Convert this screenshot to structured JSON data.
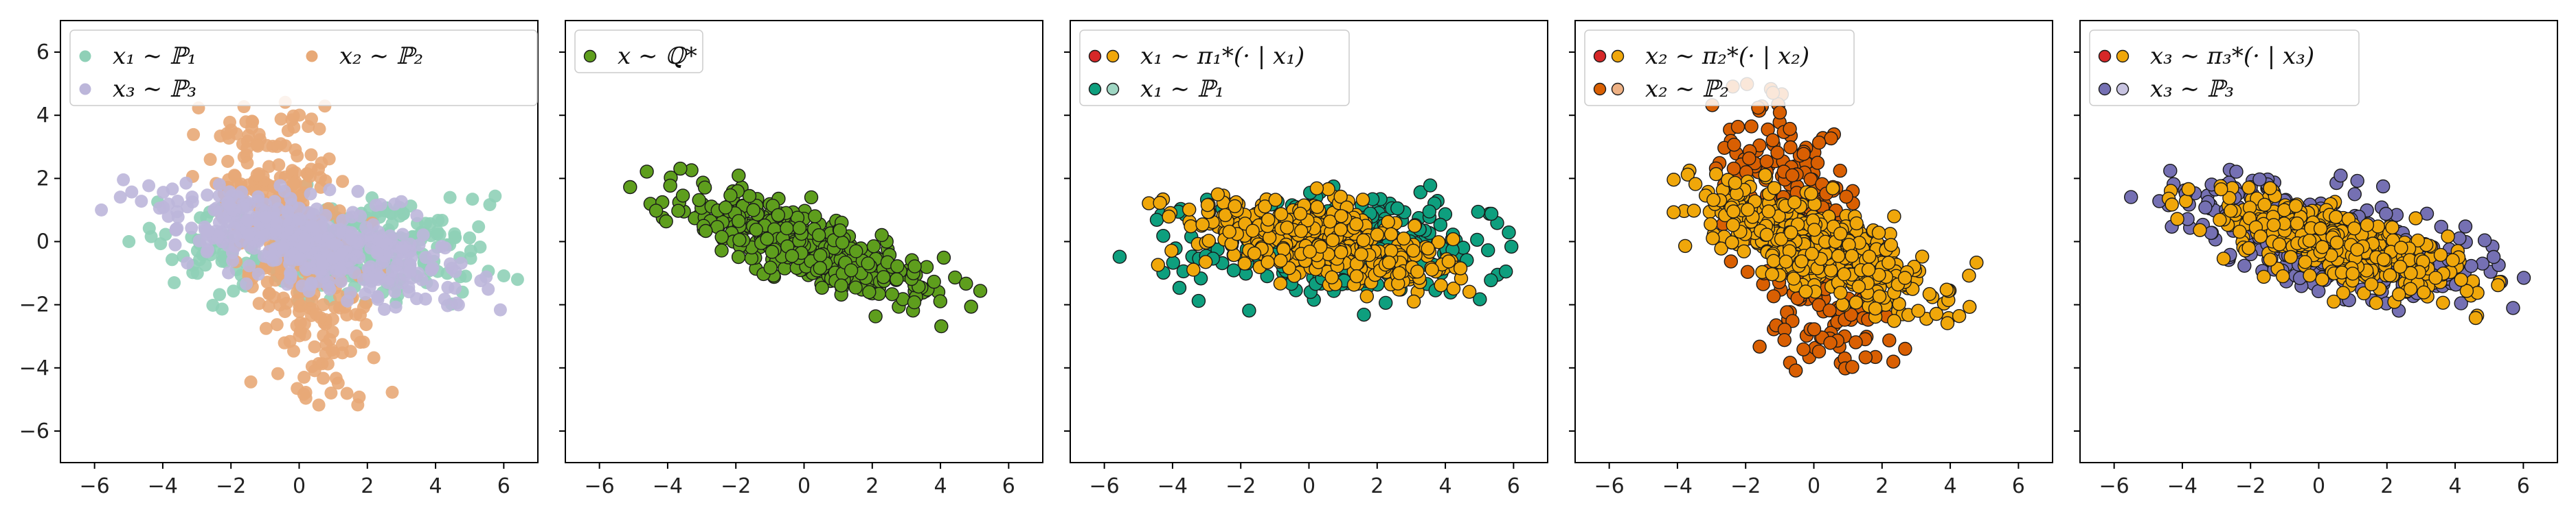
{
  "figure": {
    "panels": 5,
    "xlim": [
      -7,
      7
    ],
    "ylim": [
      -7,
      7
    ],
    "xticks": [
      -6,
      -4,
      -2,
      0,
      2,
      4,
      6
    ],
    "yticks": [
      -6,
      -4,
      -2,
      0,
      2,
      4,
      6
    ],
    "shared_y_labels_on_first_panel_only": true
  },
  "legends": [
    {
      "position": "top-left",
      "ncol": 2,
      "entries": [
        {
          "label": "x₁ ∼ ℙ₁",
          "colors": [
            "#8fd0b7"
          ]
        },
        {
          "label": "x₃ ∼ ℙ₃",
          "colors": [
            "#bcb6da"
          ]
        },
        {
          "label": "x₂ ∼ ℙ₂",
          "colors": [
            "#e8a977"
          ]
        }
      ]
    },
    {
      "position": "top-left",
      "ncol": 1,
      "entries": [
        {
          "label": "x ∼ ℚ*",
          "colors": [
            "#5e9e1d"
          ]
        }
      ]
    },
    {
      "position": "top-left",
      "ncol": 1,
      "entries": [
        {
          "label": "x₁ ∼ π₁*(· | x₁)",
          "colors": [
            "#d62728",
            "#f0a70a"
          ]
        },
        {
          "label": "x₁ ∼ ℙ₁",
          "colors": [
            "#0e9f7e",
            "#9fd6c3"
          ]
        }
      ]
    },
    {
      "position": "top-left",
      "ncol": 1,
      "entries": [
        {
          "label": "x₂ ∼ π₂*(· | x₂)",
          "colors": [
            "#d62728",
            "#f0a70a"
          ]
        },
        {
          "label": "x₂ ∼ ℙ₂",
          "colors": [
            "#d95f02",
            "#eeb184"
          ]
        }
      ]
    },
    {
      "position": "top-left",
      "ncol": 1,
      "entries": [
        {
          "label": "x₃ ∼ π₃*(· | x₃)",
          "colors": [
            "#d62728",
            "#f0a70a"
          ]
        },
        {
          "label": "x₃ ∼ ℙ₃",
          "colors": [
            "#7570b3",
            "#c7c3e0"
          ]
        }
      ]
    }
  ],
  "chart_data": [
    {
      "type": "scatter",
      "xlim": [
        -7,
        7
      ],
      "ylim": [
        -7,
        7
      ],
      "series": [
        {
          "name": "x₁ ∼ ℙ₁",
          "color": "#8fd0b7",
          "alpha": 0.9,
          "edge": false,
          "n": 320,
          "center": [
            1.0,
            -0.2
          ],
          "spread": [
            2.3,
            0.75
          ],
          "slope": 0.0,
          "clip_x": [
            -6.2,
            6.5
          ],
          "clip_y": [
            -2.2,
            2.2
          ]
        },
        {
          "name": "x₂ ∼ ℙ₂",
          "color": "#e8a977",
          "alpha": 0.9,
          "edge": false,
          "n": 320,
          "center": [
            -0.3,
            0.1
          ],
          "spread": [
            1.1,
            2.0
          ],
          "slope": -1.35,
          "clip_x": [
            -3.6,
            3.2
          ],
          "clip_y": [
            -5.2,
            4.6
          ]
        },
        {
          "name": "x₃ ∼ ℙ₃",
          "color": "#bcb6da",
          "alpha": 0.9,
          "edge": false,
          "n": 420,
          "center": [
            0.4,
            0.0
          ],
          "spread": [
            2.2,
            0.7
          ],
          "slope": -0.25,
          "clip_x": [
            -6.2,
            6.4
          ],
          "clip_y": [
            -2.5,
            2.0
          ]
        }
      ]
    },
    {
      "type": "scatter",
      "xlim": [
        -7,
        7
      ],
      "ylim": [
        -7,
        7
      ],
      "series": [
        {
          "name": "x ∼ ℚ*",
          "color": "#5e9e1d",
          "alpha": 1.0,
          "edge": true,
          "n": 420,
          "center": [
            0.2,
            -0.2
          ],
          "spread": [
            1.9,
            0.55
          ],
          "slope": -0.38,
          "clip_x": [
            -5.2,
            5.2
          ],
          "clip_y": [
            -2.7,
            2.4
          ]
        }
      ]
    },
    {
      "type": "scatter",
      "xlim": [
        -7,
        7
      ],
      "ylim": [
        -7,
        7
      ],
      "series": [
        {
          "name": "x₁ ∼ ℙ₁",
          "color": "#0e9f7e",
          "alpha": 1.0,
          "edge": true,
          "n": 320,
          "center": [
            1.0,
            -0.2
          ],
          "spread": [
            2.3,
            0.75
          ],
          "slope": 0.0,
          "clip_x": [
            -6.7,
            6.3
          ],
          "clip_y": [
            -2.5,
            2.1
          ]
        },
        {
          "name": "x₁ ∼ π₁*(· | x₁)",
          "color": "#f0a70a",
          "alpha": 1.0,
          "edge": true,
          "n": 440,
          "center": [
            0.3,
            0.0
          ],
          "spread": [
            1.9,
            0.6
          ],
          "slope": -0.2,
          "clip_x": [
            -4.8,
            5.0
          ],
          "clip_y": [
            -2.6,
            2.2
          ]
        }
      ]
    },
    {
      "type": "scatter",
      "xlim": [
        -7,
        7
      ],
      "ylim": [
        -7,
        7
      ],
      "series": [
        {
          "name": "x₂ ∼ ℙ₂",
          "color": "#d95f02",
          "alpha": 1.0,
          "edge": true,
          "n": 320,
          "center": [
            -0.3,
            0.1
          ],
          "spread": [
            1.1,
            2.0
          ],
          "slope": -1.35,
          "clip_x": [
            -3.6,
            3.3
          ],
          "clip_y": [
            -4.2,
            5.0
          ]
        },
        {
          "name": "x₂ ∼ π₂*(· | x₂)",
          "color": "#f0a70a",
          "alpha": 1.0,
          "edge": true,
          "n": 440,
          "center": [
            0.1,
            -0.2
          ],
          "spread": [
            1.9,
            0.7
          ],
          "slope": -0.45,
          "clip_x": [
            -5.0,
            5.3
          ],
          "clip_y": [
            -2.6,
            2.3
          ]
        }
      ]
    },
    {
      "type": "scatter",
      "xlim": [
        -7,
        7
      ],
      "ylim": [
        -7,
        7
      ],
      "series": [
        {
          "name": "x₃ ∼ ℙ₃",
          "color": "#7570b3",
          "alpha": 1.0,
          "edge": true,
          "n": 420,
          "center": [
            0.4,
            0.0
          ],
          "spread": [
            2.2,
            0.7
          ],
          "slope": -0.25,
          "clip_x": [
            -6.7,
            6.3
          ],
          "clip_y": [
            -2.5,
            2.5
          ]
        },
        {
          "name": "x₃ ∼ π₃*(· | x₃)",
          "color": "#f0a70a",
          "alpha": 1.0,
          "edge": true,
          "n": 440,
          "center": [
            0.6,
            -0.1
          ],
          "spread": [
            1.9,
            0.55
          ],
          "slope": -0.3,
          "clip_x": [
            -4.6,
            5.5
          ],
          "clip_y": [
            -2.5,
            1.8
          ]
        }
      ]
    }
  ]
}
